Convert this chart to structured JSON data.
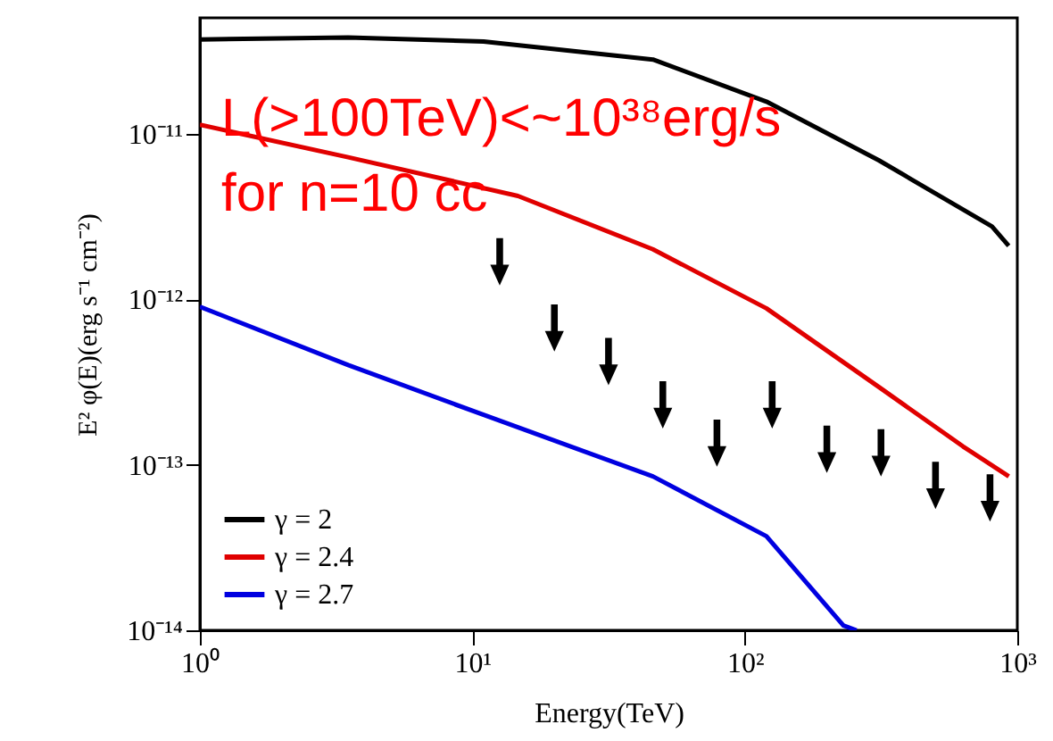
{
  "chart_data": {
    "type": "line",
    "xlabel": "Energy(TeV)",
    "ylabel": "E² φ(E)(erg s⁻¹ cm⁻²)",
    "log": "xy",
    "grid": false,
    "legend": "bottom left",
    "xlim": [
      1,
      1000
    ],
    "ylim": [
      1e-14,
      5e-11
    ],
    "xticks": [
      {
        "value": 1,
        "label": "10⁰"
      },
      {
        "value": 10,
        "label": "10¹"
      },
      {
        "value": 100,
        "label": "10²"
      },
      {
        "value": 1000,
        "label": "10³"
      }
    ],
    "yticks": [
      {
        "value": 1e-14,
        "label": "10⁻¹⁴"
      },
      {
        "value": 1e-13,
        "label": "10⁻¹³"
      },
      {
        "value": 1e-12,
        "label": "10⁻¹²"
      },
      {
        "value": 1e-11,
        "label": "10⁻¹¹"
      }
    ],
    "annotations": [
      "L(>100TeV)<~10³⁸erg/s",
      "for n=10 cc"
    ],
    "series": [
      {
        "name": "γ = 2",
        "color": "#000000",
        "x": [
          1,
          3.5,
          11,
          46,
          120,
          310,
          807,
          930
        ],
        "values": [
          3.7e-11,
          3.8e-11,
          3.6e-11,
          2.8e-11,
          1.56e-11,
          6.9e-12,
          2.75e-12,
          2.1e-12
        ]
      },
      {
        "name": "γ = 2.4",
        "color": "#e00000",
        "x": [
          1,
          3.5,
          14.7,
          46,
          120,
          310,
          632,
          931
        ],
        "values": [
          1.13e-11,
          7.2e-12,
          4.2e-12,
          2e-12,
          8.8e-13,
          2.95e-13,
          1.29e-13,
          8.5e-14
        ]
      },
      {
        "name": "γ = 2.7",
        "color": "#0000e0",
        "x": [
          1,
          3.5,
          11,
          46,
          120,
          230,
          257
        ],
        "values": [
          9e-13,
          4e-13,
          2e-13,
          8.5e-14,
          3.7e-14,
          1.07e-14,
          1e-14
        ]
      },
      {
        "type": "scatter",
        "color": "#000000",
        "x": [
          12.6,
          20,
          31.6,
          50,
          79,
          126,
          200,
          316,
          501,
          794
        ],
        "values": [
          1.68e-12,
          6.7e-13,
          4.2e-13,
          2.3e-13,
          1.35e-13,
          2.3e-13,
          1.24e-13,
          1.18e-13,
          7.5e-14,
          6.3e-14
        ]
      }
    ]
  }
}
